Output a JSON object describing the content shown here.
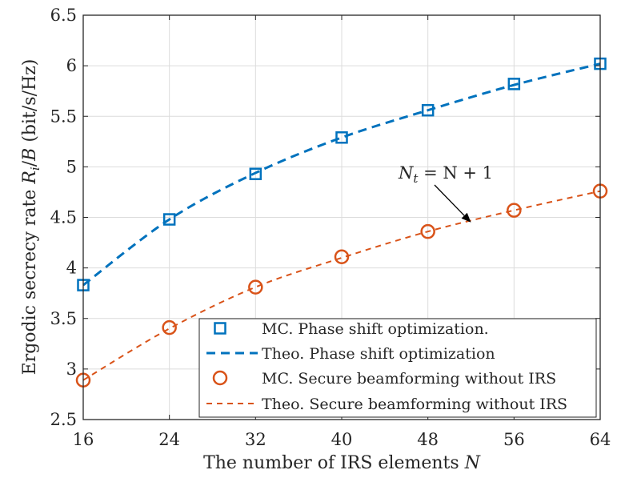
{
  "chart_data": {
    "type": "line",
    "title": "",
    "xlabel": "The number of IRS elements N",
    "ylabel": "Ergodic secrecy rate R_i/B (bit/s/Hz)",
    "x": [
      16,
      24,
      32,
      40,
      48,
      56,
      64
    ],
    "xlim": [
      16,
      64
    ],
    "ylim": [
      2.5,
      6.5
    ],
    "xticks": [
      "16",
      "24",
      "32",
      "40",
      "48",
      "56",
      "64"
    ],
    "yticks": [
      "2.5",
      "3",
      "3.5",
      "4",
      "4.5",
      "5",
      "5.5",
      "6",
      "6.5"
    ],
    "grid": true,
    "legend_position": "bottom-right",
    "series": [
      {
        "name": "MC. Phase shift optimization.",
        "style": "square-markers",
        "color": "#0072BD",
        "values": [
          3.83,
          4.48,
          4.93,
          5.29,
          5.56,
          5.82,
          6.02
        ]
      },
      {
        "name": "Theo. Phase shift optimization",
        "style": "dashed",
        "color": "#0072BD",
        "values": [
          3.83,
          4.48,
          4.94,
          5.29,
          5.56,
          5.81,
          6.02
        ]
      },
      {
        "name": "MC. Secure beamforming without IRS",
        "style": "circle-markers",
        "color": "#D95319",
        "values": [
          2.89,
          3.41,
          3.81,
          4.11,
          4.36,
          4.57,
          4.76
        ]
      },
      {
        "name": "Theo. Secure beamforming without IRS",
        "style": "dashed-thin",
        "color": "#D95319",
        "values": [
          2.89,
          3.4,
          3.81,
          4.1,
          4.36,
          4.57,
          4.76
        ]
      }
    ],
    "annotation": {
      "text": "N_t = N + 1",
      "points_to_x": 52,
      "points_to_y": 4.45
    }
  }
}
